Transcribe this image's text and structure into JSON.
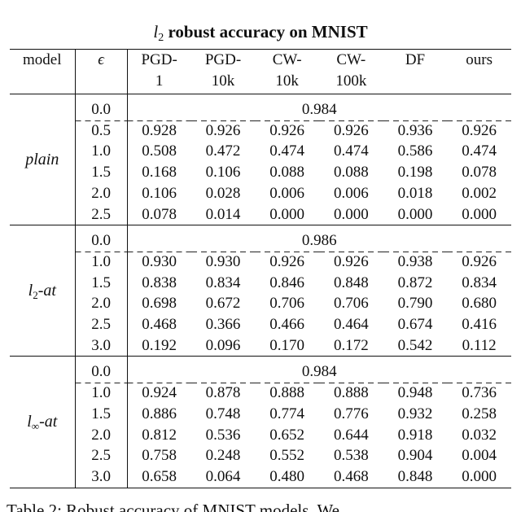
{
  "title": {
    "sym": "l",
    "sub": "2",
    "rest": "robust accuracy on MNIST"
  },
  "header": {
    "model": "model",
    "eps": "ϵ",
    "cols": [
      [
        "PGD-",
        "1"
      ],
      [
        "PGD-",
        "10k"
      ],
      [
        "CW-",
        "10k"
      ],
      [
        "CW-",
        "100k"
      ],
      [
        "DF",
        ""
      ],
      [
        "ours",
        ""
      ]
    ]
  },
  "sections": [
    {
      "model_label": "plain",
      "model_sub": "",
      "model_suffix": "",
      "clean_eps": "0.0",
      "clean_acc": "0.984",
      "rows": [
        {
          "eps": "0.5",
          "vals": [
            "0.928",
            "0.926",
            "0.926",
            "0.926",
            "0.936",
            "0.926"
          ],
          "bold": [
            false,
            true,
            true,
            true,
            false,
            true
          ]
        },
        {
          "eps": "1.0",
          "vals": [
            "0.508",
            "0.472",
            "0.474",
            "0.474",
            "0.586",
            "0.474"
          ],
          "bold": [
            false,
            true,
            false,
            false,
            false,
            false
          ]
        },
        {
          "eps": "1.5",
          "vals": [
            "0.168",
            "0.106",
            "0.088",
            "0.088",
            "0.198",
            "0.078"
          ],
          "bold": [
            false,
            false,
            false,
            false,
            false,
            true
          ]
        },
        {
          "eps": "2.0",
          "vals": [
            "0.106",
            "0.028",
            "0.006",
            "0.006",
            "0.018",
            "0.002"
          ],
          "bold": [
            false,
            false,
            false,
            false,
            false,
            true
          ]
        },
        {
          "eps": "2.5",
          "vals": [
            "0.078",
            "0.014",
            "0.000",
            "0.000",
            "0.000",
            "0.000"
          ],
          "bold": [
            false,
            false,
            true,
            true,
            true,
            true
          ]
        }
      ]
    },
    {
      "model_label": "l",
      "model_sub": "2",
      "model_suffix": "-at",
      "clean_eps": "0.0",
      "clean_acc": "0.986",
      "rows": [
        {
          "eps": "1.0",
          "vals": [
            "0.930",
            "0.930",
            "0.926",
            "0.926",
            "0.938",
            "0.926"
          ],
          "bold": [
            false,
            false,
            true,
            true,
            false,
            true
          ]
        },
        {
          "eps": "1.5",
          "vals": [
            "0.838",
            "0.834",
            "0.846",
            "0.848",
            "0.872",
            "0.834"
          ],
          "bold": [
            false,
            true,
            false,
            false,
            false,
            true
          ]
        },
        {
          "eps": "2.0",
          "vals": [
            "0.698",
            "0.672",
            "0.706",
            "0.706",
            "0.790",
            "0.680"
          ],
          "bold": [
            false,
            true,
            false,
            false,
            false,
            false
          ]
        },
        {
          "eps": "2.5",
          "vals": [
            "0.468",
            "0.366",
            "0.466",
            "0.464",
            "0.674",
            "0.416"
          ],
          "bold": [
            false,
            true,
            false,
            false,
            false,
            false
          ]
        },
        {
          "eps": "3.0",
          "vals": [
            "0.192",
            "0.096",
            "0.170",
            "0.172",
            "0.542",
            "0.112"
          ],
          "bold": [
            false,
            true,
            false,
            false,
            false,
            false
          ]
        }
      ]
    },
    {
      "model_label": "l",
      "model_sub": "∞",
      "model_suffix": "-at",
      "clean_eps": "0.0",
      "clean_acc": "0.984",
      "rows": [
        {
          "eps": "1.0",
          "vals": [
            "0.924",
            "0.878",
            "0.888",
            "0.888",
            "0.948",
            "0.736"
          ],
          "bold": [
            false,
            false,
            false,
            false,
            false,
            true
          ]
        },
        {
          "eps": "1.5",
          "vals": [
            "0.886",
            "0.748",
            "0.774",
            "0.776",
            "0.932",
            "0.258"
          ],
          "bold": [
            false,
            false,
            false,
            false,
            false,
            true
          ]
        },
        {
          "eps": "2.0",
          "vals": [
            "0.812",
            "0.536",
            "0.652",
            "0.644",
            "0.918",
            "0.032"
          ],
          "bold": [
            false,
            false,
            false,
            false,
            false,
            true
          ]
        },
        {
          "eps": "2.5",
          "vals": [
            "0.758",
            "0.248",
            "0.552",
            "0.538",
            "0.904",
            "0.004"
          ],
          "bold": [
            false,
            false,
            false,
            false,
            false,
            true
          ]
        },
        {
          "eps": "3.0",
          "vals": [
            "0.658",
            "0.064",
            "0.480",
            "0.468",
            "0.848",
            "0.000"
          ],
          "bold": [
            false,
            false,
            false,
            false,
            false,
            true
          ]
        }
      ]
    }
  ],
  "caption_text": "Table 2: Robust accuracy of MNIST models. We..."
}
